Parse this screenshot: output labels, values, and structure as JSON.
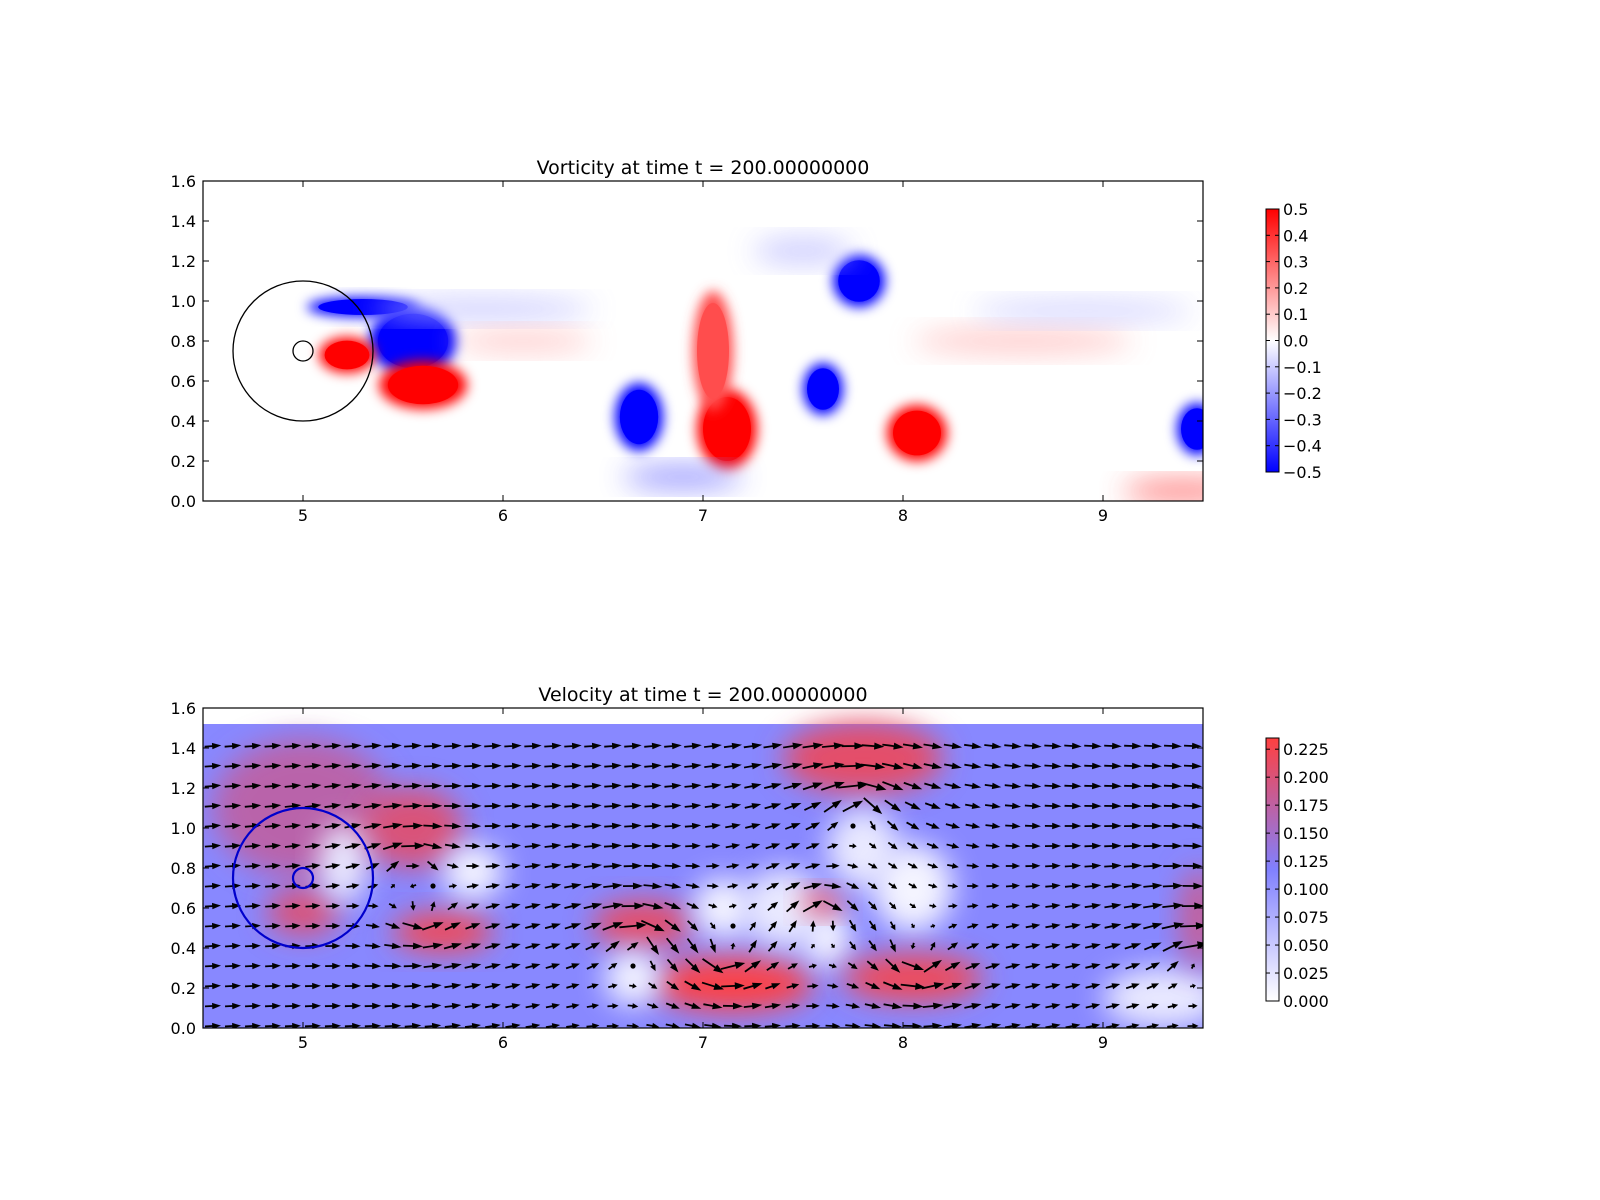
{
  "chart_data": [
    {
      "type": "heatmap",
      "title": "Vorticity at time t =   200.00000000",
      "xlim": [
        4.5,
        9.5
      ],
      "ylim": [
        0.0,
        1.6
      ],
      "xticks": [
        5,
        6,
        7,
        8,
        9
      ],
      "yticks": [
        0.0,
        0.2,
        0.4,
        0.6,
        0.8,
        1.0,
        1.2,
        1.4,
        1.6
      ],
      "xtick_labels": [
        "5",
        "6",
        "7",
        "8",
        "9"
      ],
      "ytick_labels": [
        "0.0",
        "0.2",
        "0.4",
        "0.6",
        "0.8",
        "1.0",
        "1.2",
        "1.4",
        "1.6"
      ],
      "colormap": "bwr",
      "colors": {
        "low": "#0000ff",
        "mid": "#ffffff",
        "high": "#ff0000"
      },
      "vmin": -0.5,
      "vmax": 0.5,
      "colorbar_ticks": [
        0.5,
        0.4,
        0.3,
        0.2,
        0.1,
        0.0,
        -0.1,
        -0.2,
        -0.3,
        -0.4,
        -0.5
      ],
      "colorbar_labels": [
        "0.5",
        "0.4",
        "0.3",
        "0.2",
        "0.1",
        "0.0",
        "−0.1",
        "−0.2",
        "−0.3",
        "−0.4",
        "−0.5"
      ],
      "cylinder": {
        "cx": 5.0,
        "cy": 0.75,
        "r": 0.05
      },
      "outer_circle": {
        "cx": 5.0,
        "cy": 0.75,
        "r": 0.35
      },
      "circle_color": "#000000",
      "vortices": [
        {
          "x": 5.55,
          "y": 0.8,
          "rx": 0.22,
          "ry": 0.17,
          "value": -0.5
        },
        {
          "x": 5.3,
          "y": 0.97,
          "rx": 0.28,
          "ry": 0.05,
          "value": -0.5
        },
        {
          "x": 5.22,
          "y": 0.73,
          "rx": 0.14,
          "ry": 0.09,
          "value": 0.5
        },
        {
          "x": 5.6,
          "y": 0.58,
          "rx": 0.22,
          "ry": 0.12,
          "value": 0.5
        },
        {
          "x": 6.68,
          "y": 0.42,
          "rx": 0.12,
          "ry": 0.17,
          "value": -0.5
        },
        {
          "x": 7.12,
          "y": 0.36,
          "rx": 0.15,
          "ry": 0.2,
          "value": 0.5
        },
        {
          "x": 7.05,
          "y": 0.75,
          "rx": 0.1,
          "ry": 0.3,
          "value": 0.35
        },
        {
          "x": 7.6,
          "y": 0.56,
          "rx": 0.1,
          "ry": 0.13,
          "value": -0.5
        },
        {
          "x": 7.78,
          "y": 1.1,
          "rx": 0.13,
          "ry": 0.13,
          "value": -0.5
        },
        {
          "x": 8.07,
          "y": 0.34,
          "rx": 0.15,
          "ry": 0.14,
          "value": 0.5
        },
        {
          "x": 9.47,
          "y": 0.36,
          "rx": 0.1,
          "ry": 0.13,
          "value": -0.5
        },
        {
          "x": 9.4,
          "y": 0.05,
          "rx": 0.3,
          "ry": 0.05,
          "value": 0.3
        },
        {
          "x": 5.9,
          "y": 0.96,
          "rx": 0.55,
          "ry": 0.05,
          "value": -0.12
        },
        {
          "x": 6.1,
          "y": 0.8,
          "rx": 0.35,
          "ry": 0.05,
          "value": 0.12
        },
        {
          "x": 8.6,
          "y": 0.8,
          "rx": 0.55,
          "ry": 0.06,
          "value": 0.12
        },
        {
          "x": 8.9,
          "y": 0.95,
          "rx": 0.55,
          "ry": 0.05,
          "value": -0.1
        },
        {
          "x": 6.9,
          "y": 0.12,
          "rx": 0.3,
          "ry": 0.05,
          "value": -0.25
        },
        {
          "x": 7.5,
          "y": 1.25,
          "rx": 0.25,
          "ry": 0.06,
          "value": -0.12
        }
      ]
    },
    {
      "type": "heatmap",
      "title": "Velocity at time t =   200.00000000",
      "xlim": [
        4.5,
        9.5
      ],
      "ylim": [
        0.0,
        1.6
      ],
      "xticks": [
        5,
        6,
        7,
        8,
        9
      ],
      "yticks": [
        0.0,
        0.2,
        0.4,
        0.6,
        0.8,
        1.0,
        1.2,
        1.4,
        1.6
      ],
      "xtick_labels": [
        "5",
        "6",
        "7",
        "8",
        "9"
      ],
      "ytick_labels": [
        "0.0",
        "0.2",
        "0.4",
        "0.6",
        "0.8",
        "1.0",
        "1.2",
        "1.4",
        "1.6"
      ],
      "field_ylim": [
        0.0,
        1.52
      ],
      "colors": {
        "low": "#ffffff",
        "mid": "#8080ff",
        "high": "#ff4040"
      },
      "vmin": 0.0,
      "vmax": 0.235,
      "background_value": 0.11,
      "colorbar_ticks": [
        0.225,
        0.2,
        0.175,
        0.15,
        0.125,
        0.1,
        0.075,
        0.05,
        0.025,
        0.0
      ],
      "colorbar_labels": [
        "0.225",
        "0.200",
        "0.175",
        "0.150",
        "0.125",
        "0.100",
        "0.075",
        "0.050",
        "0.025",
        "0.000"
      ],
      "cylinder": {
        "cx": 5.0,
        "cy": 0.75,
        "r": 0.05
      },
      "outer_circle": {
        "cx": 5.0,
        "cy": 0.75,
        "r": 0.35
      },
      "circle_color": "#0000cc",
      "arrow_color": "#000000",
      "blobs": [
        {
          "x": 5.0,
          "y": 1.1,
          "rx": 0.45,
          "ry": 0.35,
          "value": 0.17
        },
        {
          "x": 5.55,
          "y": 1.0,
          "rx": 0.25,
          "ry": 0.2,
          "value": 0.2
        },
        {
          "x": 5.0,
          "y": 0.58,
          "rx": 0.18,
          "ry": 0.12,
          "value": 0.2
        },
        {
          "x": 5.7,
          "y": 0.48,
          "rx": 0.25,
          "ry": 0.1,
          "value": 0.22
        },
        {
          "x": 5.2,
          "y": 0.82,
          "rx": 0.12,
          "ry": 0.2,
          "value": 0.02
        },
        {
          "x": 5.85,
          "y": 0.78,
          "rx": 0.15,
          "ry": 0.14,
          "value": 0.01
        },
        {
          "x": 6.7,
          "y": 0.52,
          "rx": 0.25,
          "ry": 0.12,
          "value": 0.21
        },
        {
          "x": 7.15,
          "y": 0.22,
          "rx": 0.4,
          "ry": 0.14,
          "value": 0.23
        },
        {
          "x": 7.4,
          "y": 0.6,
          "rx": 0.2,
          "ry": 0.2,
          "value": 0.02
        },
        {
          "x": 7.1,
          "y": 0.6,
          "rx": 0.15,
          "ry": 0.15,
          "value": 0.01
        },
        {
          "x": 6.65,
          "y": 0.25,
          "rx": 0.14,
          "ry": 0.14,
          "value": 0.01
        },
        {
          "x": 7.62,
          "y": 0.45,
          "rx": 0.12,
          "ry": 0.15,
          "value": 0.01
        },
        {
          "x": 7.8,
          "y": 1.35,
          "rx": 0.4,
          "ry": 0.18,
          "value": 0.21
        },
        {
          "x": 7.6,
          "y": 0.63,
          "rx": 0.1,
          "ry": 0.06,
          "value": 0.22
        },
        {
          "x": 7.8,
          "y": 0.9,
          "rx": 0.18,
          "ry": 0.2,
          "value": 0.02
        },
        {
          "x": 8.05,
          "y": 0.7,
          "rx": 0.2,
          "ry": 0.22,
          "value": 0.01
        },
        {
          "x": 8.05,
          "y": 0.25,
          "rx": 0.35,
          "ry": 0.12,
          "value": 0.22
        },
        {
          "x": 9.3,
          "y": 0.15,
          "rx": 0.3,
          "ry": 0.15,
          "value": 0.02
        },
        {
          "x": 9.48,
          "y": 0.55,
          "rx": 0.1,
          "ry": 0.25,
          "value": 0.18
        }
      ],
      "vortices_flow": [
        {
          "x": 5.55,
          "y": 0.8,
          "strength": -0.012,
          "core": 0.15
        },
        {
          "x": 5.6,
          "y": 0.58,
          "strength": 0.012,
          "core": 0.15
        },
        {
          "x": 6.68,
          "y": 0.42,
          "strength": -0.014,
          "core": 0.16
        },
        {
          "x": 7.12,
          "y": 0.36,
          "strength": 0.016,
          "core": 0.18
        },
        {
          "x": 7.6,
          "y": 0.56,
          "strength": -0.012,
          "core": 0.14
        },
        {
          "x": 7.78,
          "y": 1.1,
          "strength": -0.014,
          "core": 0.15
        },
        {
          "x": 8.07,
          "y": 0.34,
          "strength": 0.014,
          "core": 0.16
        },
        {
          "x": 9.47,
          "y": 0.36,
          "strength": -0.012,
          "core": 0.14
        }
      ]
    }
  ]
}
